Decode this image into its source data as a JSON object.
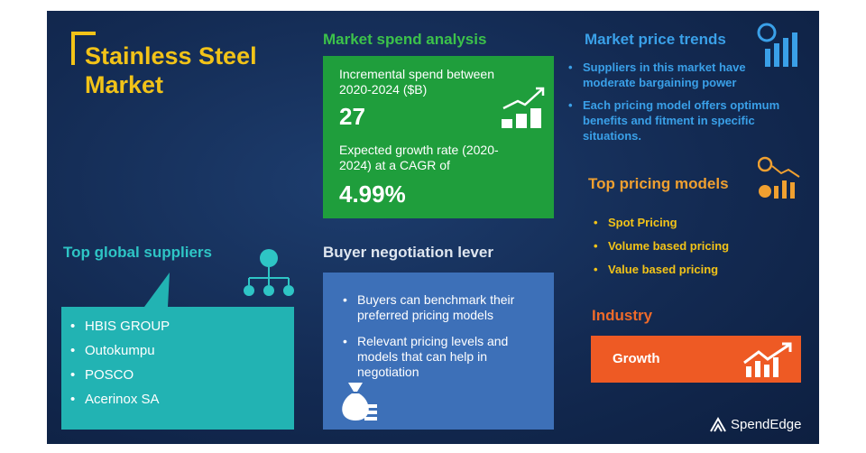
{
  "header": {
    "title": "Stainless Steel Market"
  },
  "market_spend": {
    "heading": "Market spend analysis",
    "incremental_label": "Incremental spend between 2020-2024 ($B)",
    "incremental_value": "27",
    "growth_label": "Expected growth rate (2020-2024) at a CAGR of",
    "growth_value": "4.99%"
  },
  "price_trends": {
    "heading": "Market price trends",
    "points": [
      "Suppliers in this market have moderate bargaining power",
      "Each pricing model offers optimum benefits and fitment in specific situations."
    ]
  },
  "pricing_models": {
    "heading": "Top pricing models",
    "items": [
      "Spot Pricing",
      "Volume based pricing",
      "Value based pricing"
    ]
  },
  "suppliers": {
    "heading": "Top global suppliers",
    "items": [
      "HBIS GROUP",
      "Outokumpu",
      "POSCO",
      "Acerinox SA"
    ]
  },
  "negotiation": {
    "heading": "Buyer negotiation lever",
    "points": [
      "Buyers can benchmark their preferred pricing models",
      "Relevant pricing levels and models that can help in negotiation"
    ]
  },
  "industry": {
    "heading": "Industry",
    "status": "Growth"
  },
  "brand": "SpendEdge"
}
